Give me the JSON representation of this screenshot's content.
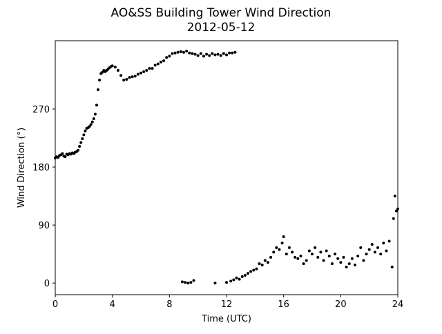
{
  "chart_data": {
    "type": "scatter",
    "title": "AO&SS Building Tower Wind Direction",
    "subtitle": "2012-05-12",
    "x_label": "Time (UTC)",
    "y_label": "Wind Direction (°)",
    "xlim": [
      0,
      24
    ],
    "ylim": [
      -18,
      376
    ],
    "xticks": [
      0,
      4,
      8,
      12,
      16,
      20,
      24
    ],
    "yticks": [
      0,
      90,
      180,
      270
    ],
    "color": "#000000",
    "x": [
      0.0,
      0.1,
      0.2,
      0.3,
      0.4,
      0.5,
      0.6,
      0.7,
      0.8,
      0.9,
      1.0,
      1.1,
      1.2,
      1.3,
      1.4,
      1.5,
      1.6,
      1.7,
      1.8,
      1.9,
      2.0,
      2.1,
      2.2,
      2.3,
      2.4,
      2.5,
      2.6,
      2.7,
      2.8,
      2.9,
      3.0,
      3.1,
      3.2,
      3.3,
      3.4,
      3.5,
      3.6,
      3.7,
      3.8,
      3.9,
      4.0,
      4.2,
      4.4,
      4.6,
      4.8,
      5.0,
      5.2,
      5.4,
      5.6,
      5.8,
      6.0,
      6.2,
      6.4,
      6.6,
      6.8,
      7.0,
      7.2,
      7.4,
      7.6,
      7.8,
      8.0,
      8.2,
      8.4,
      8.6,
      8.8,
      9.0,
      9.2,
      9.4,
      9.6,
      9.8,
      10.0,
      10.2,
      10.4,
      10.6,
      10.8,
      11.0,
      11.2,
      11.4,
      11.6,
      11.8,
      12.0,
      12.2,
      12.4,
      12.6,
      8.9,
      9.1,
      9.3,
      9.5,
      9.7,
      11.2,
      12.0,
      12.3,
      12.5,
      12.7,
      12.9,
      13.1,
      13.3,
      13.5,
      13.7,
      13.9,
      14.1,
      14.3,
      14.5,
      14.7,
      14.9,
      15.1,
      15.3,
      15.5,
      15.7,
      15.9,
      16.0,
      16.2,
      16.4,
      16.6,
      16.8,
      17.0,
      17.2,
      17.4,
      17.6,
      17.8,
      18.0,
      18.2,
      18.4,
      18.6,
      18.8,
      19.0,
      19.2,
      19.4,
      19.6,
      19.8,
      20.0,
      20.2,
      20.4,
      20.6,
      20.8,
      21.0,
      21.2,
      21.4,
      21.6,
      21.8,
      22.0,
      22.2,
      22.4,
      22.6,
      22.8,
      23.0,
      23.2,
      23.4,
      23.6,
      23.7,
      23.8,
      23.9,
      24.0
    ],
    "values": [
      194,
      196,
      195,
      198,
      199,
      201,
      197,
      196,
      200,
      199,
      201,
      200,
      202,
      201,
      203,
      204,
      206,
      212,
      218,
      224,
      230,
      236,
      240,
      241,
      243,
      246,
      250,
      255,
      262,
      276,
      300,
      315,
      325,
      327,
      330,
      328,
      330,
      332,
      334,
      336,
      337,
      335,
      330,
      322,
      315,
      316,
      319,
      320,
      321,
      324,
      326,
      328,
      330,
      333,
      333,
      338,
      340,
      343,
      345,
      350,
      352,
      356,
      357,
      358,
      359,
      358,
      360,
      357,
      356,
      355,
      353,
      356,
      352,
      355,
      353,
      356,
      354,
      355,
      353,
      356,
      354,
      357,
      357,
      358,
      2,
      1,
      0,
      1,
      4,
      0,
      1,
      3,
      5,
      8,
      6,
      10,
      12,
      15,
      18,
      20,
      22,
      30,
      28,
      35,
      32,
      40,
      48,
      55,
      52,
      62,
      72,
      45,
      55,
      48,
      40,
      38,
      42,
      30,
      35,
      50,
      45,
      55,
      40,
      48,
      35,
      50,
      42,
      30,
      45,
      38,
      32,
      40,
      25,
      30,
      38,
      28,
      42,
      55,
      35,
      45,
      52,
      60,
      48,
      55,
      45,
      62,
      50,
      65,
      25,
      100,
      135,
      112,
      115
    ]
  }
}
